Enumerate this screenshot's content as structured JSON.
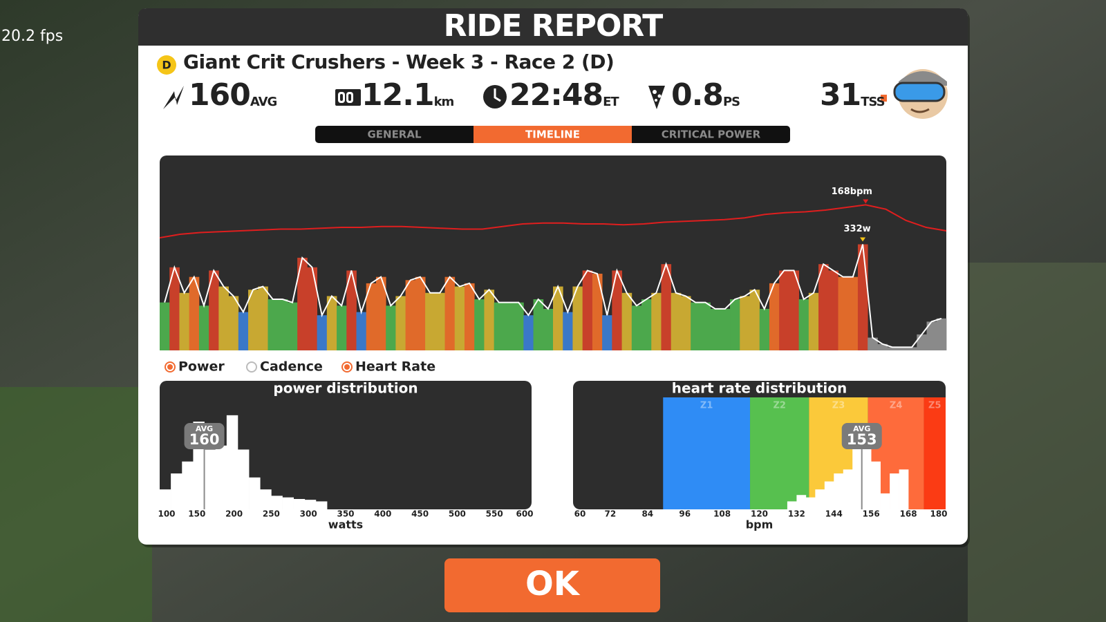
{
  "hud": {
    "fps": "20.2 fps"
  },
  "header": {
    "title": "RIDE REPORT"
  },
  "event": {
    "category": "D",
    "name": "Giant Crit Crushers - Week 3 - Race 2 (D)"
  },
  "stats": [
    {
      "value": 160,
      "unit": "AVG"
    },
    {
      "value": 12.1,
      "unit": "km"
    },
    {
      "value": "22:48",
      "unit": "ET"
    },
    {
      "value": 0.8,
      "unit": "PS"
    },
    {
      "value": 31,
      "unit": "TSS"
    }
  ],
  "tabs": [
    "GENERAL",
    "TIMELINE",
    "CRITICAL POWER"
  ],
  "active_tab": "TIMELINE",
  "legend": [
    {
      "name": "Power",
      "on": true
    },
    {
      "name": "Cadence",
      "on": false
    },
    {
      "name": "Heart Rate",
      "on": true
    }
  ],
  "chart_data": [
    {
      "type": "combo",
      "ylim": [
        0,
        610
      ],
      "y2lim": [
        0,
        225
      ],
      "power": {
        "values": [
          150,
          260,
          180,
          230,
          140,
          250,
          200,
          170,
          120,
          190,
          200,
          160,
          160,
          150,
          290,
          260,
          110,
          170,
          140,
          250,
          120,
          210,
          230,
          140,
          170,
          220,
          230,
          180,
          180,
          230,
          200,
          210,
          160,
          190,
          150,
          150,
          150,
          110,
          160,
          130,
          200,
          120,
          200,
          250,
          240,
          110,
          250,
          180,
          140,
          160,
          180,
          270,
          180,
          170,
          150,
          150,
          130,
          130,
          160,
          170,
          190,
          130,
          210,
          250,
          250,
          160,
          180,
          270,
          250,
          230,
          230,
          332,
          40,
          20,
          10,
          10,
          10,
          50,
          90,
          100
        ],
        "colors": [
          "#4ca84c",
          "#c8402a",
          "#c8a832",
          "#e06a2a",
          "#4ca84c",
          "#c8402a",
          "#c8a832",
          "#c8a832",
          "#3a78c8",
          "#c8a832",
          "#c8a832",
          "#4ca84c",
          "#4ca84c",
          "#4ca84c",
          "#c8402a",
          "#c8402a",
          "#3a78c8",
          "#c8a832",
          "#4ca84c",
          "#c8402a",
          "#3a78c8",
          "#e06a2a",
          "#e06a2a",
          "#4ca84c",
          "#c8a832",
          "#e06a2a",
          "#e06a2a",
          "#c8a832",
          "#c8a832",
          "#e06a2a",
          "#c8a832",
          "#e06a2a",
          "#4ca84c",
          "#c8a832",
          "#4ca84c",
          "#4ca84c",
          "#4ca84c",
          "#3a78c8",
          "#4ca84c",
          "#4ca84c",
          "#c8a832",
          "#3a78c8",
          "#c8a832",
          "#c8402a",
          "#e06a2a",
          "#3a78c8",
          "#c8402a",
          "#c8a832",
          "#4ca84c",
          "#4ca84c",
          "#c8a832",
          "#c8402a",
          "#c8a832",
          "#c8a832",
          "#4ca84c",
          "#4ca84c",
          "#4ca84c",
          "#4ca84c",
          "#4ca84c",
          "#c8a832",
          "#c8a832",
          "#4ca84c",
          "#e06a2a",
          "#c8402a",
          "#c8402a",
          "#4ca84c",
          "#c8a832",
          "#c8402a",
          "#c8402a",
          "#e06a2a",
          "#e06a2a",
          "#c8402a",
          "#8a8a8a",
          "#8a8a8a",
          "#8a8a8a",
          "#8a8a8a",
          "#8a8a8a",
          "#8a8a8a",
          "#8a8a8a",
          "#8a8a8a"
        ],
        "peak_label": "332w"
      },
      "heart_rate": {
        "values": [
          130,
          134,
          136,
          137,
          138,
          139,
          140,
          140,
          141,
          142,
          142,
          143,
          143,
          142,
          141,
          140,
          140,
          143,
          146,
          147,
          147,
          146,
          146,
          145,
          146,
          148,
          149,
          150,
          151,
          153,
          157,
          159,
          160,
          162,
          165,
          168,
          163,
          150,
          142,
          138
        ],
        "color": "#e01e1e",
        "axis": "y2",
        "peak_label": "168bpm"
      }
    },
    {
      "type": "histogram",
      "title": "power distribution",
      "bins": [
        100,
        115,
        130,
        145,
        160,
        175,
        190,
        205,
        220,
        235,
        250,
        265,
        280,
        295,
        310,
        325
      ],
      "values": [
        25,
        45,
        60,
        110,
        75,
        80,
        118,
        75,
        40,
        25,
        17,
        15,
        13,
        12,
        10
      ],
      "color": "#ffffff",
      "xlim": [
        100,
        600
      ],
      "xticks": [
        100,
        150,
        200,
        250,
        300,
        350,
        400,
        450,
        500,
        550,
        600
      ],
      "ylim": [
        0,
        130
      ],
      "xlabel": "watts",
      "avg": {
        "label": "AVG",
        "value": 160
      }
    },
    {
      "type": "histogram",
      "title": "heart rate distribution",
      "bins": [
        129,
        132,
        135,
        138,
        141,
        144,
        147,
        150,
        153,
        156,
        159,
        162,
        165,
        168
      ],
      "values": [
        10,
        18,
        15,
        25,
        35,
        45,
        50,
        80,
        90,
        60,
        20,
        45,
        50
      ],
      "color": "#ffffff",
      "xlim": [
        60,
        180
      ],
      "xticks": [
        60,
        72,
        84,
        96,
        108,
        120,
        132,
        144,
        156,
        168,
        180
      ],
      "ylim": [
        0,
        130
      ],
      "xlabel": "bpm",
      "avg": {
        "label": "AVG",
        "value": 153
      },
      "zones": {
        "names": [
          "Z1",
          "Z2",
          "Z3",
          "Z4",
          "Z5"
        ],
        "edges": [
          89,
          117,
          136,
          155,
          173,
          180
        ],
        "colors": [
          "#2f8cf5",
          "#57c04f",
          "#fbc93a",
          "#fe6b3b",
          "#fb3b14"
        ]
      }
    }
  ],
  "button": {
    "label": "OK"
  }
}
